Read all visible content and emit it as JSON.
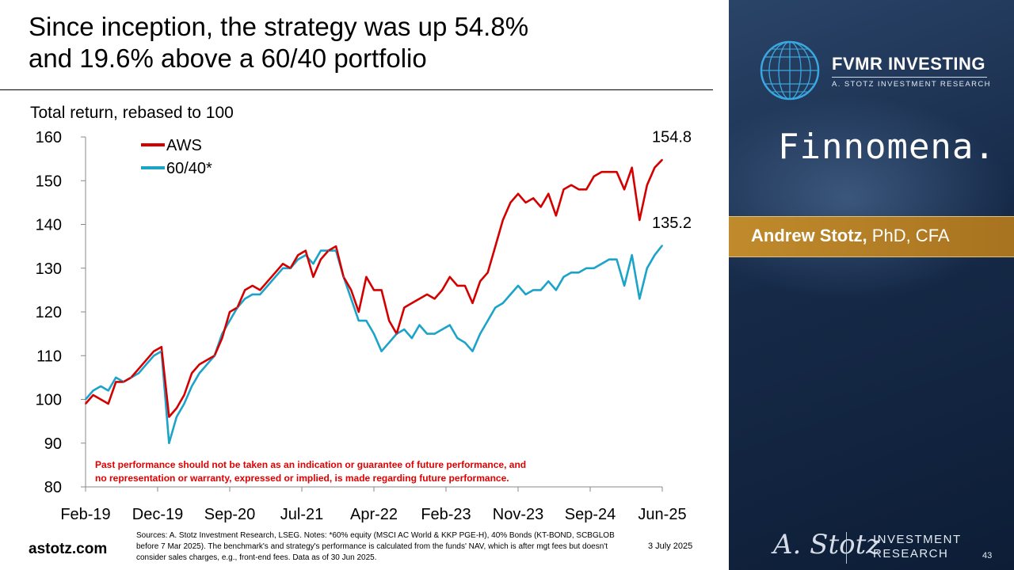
{
  "slide": {
    "title_line1": "Since inception, the strategy was up 54.8%",
    "title_line2": "and 19.6% above a 60/40 portfolio",
    "website": "astotz.com",
    "sources": "Sources: A. Stotz Investment Research, LSEG. Notes: *60% equity (MSCI AC World & KKP PGE-H), 40% Bonds (KT-BOND, SCBGLOB before 7 Mar 2025). The benchmark's and strategy's performance is calculated from the funds' NAV, which is after mgt fees but doesn't consider sales charges, e.g., front-end fees. Data as of 30 Jun 2025.",
    "date": "3 July 2025",
    "page_number": "43"
  },
  "sidebar": {
    "brand": "FVMR INVESTING",
    "brand_sub": "A. STOTZ INVESTMENT RESEARCH",
    "partner": "Finnomena.",
    "author_name": "Andrew Stotz,",
    "author_credentials": " PhD, CFA",
    "signature": "A. Stotz",
    "sig_line1": "INVESTMENT",
    "sig_line2": "RESEARCH",
    "bg_color": "#162a48",
    "accent_color": "#b07a22"
  },
  "chart_data": {
    "type": "line",
    "title": "Total return, rebased to 100",
    "xlabel": "",
    "ylabel": "",
    "ylim": [
      80,
      160
    ],
    "yticks": [
      80,
      90,
      100,
      110,
      120,
      130,
      140,
      150,
      160
    ],
    "x_tick_labels": [
      "Feb-19",
      "Dec-19",
      "Sep-20",
      "Jul-21",
      "Apr-22",
      "Feb-23",
      "Nov-23",
      "Sep-24",
      "Jun-25"
    ],
    "x_range_months": [
      0,
      76
    ],
    "legend_position": "top-left",
    "grid": false,
    "disclaimer_line1": "Past performance should not be taken as an indication or guarantee of future performance, and",
    "disclaimer_line2": "no representation or warranty, expressed or implied, is made regarding future performance.",
    "disclaimer_color": "#e00000",
    "series": [
      {
        "name": "AWS",
        "color": "#d40000",
        "end_label": "154.8",
        "x": [
          0,
          1,
          2,
          3,
          4,
          5,
          6,
          7,
          8,
          9,
          10,
          11,
          12,
          13,
          14,
          15,
          16,
          17,
          18,
          19,
          20,
          21,
          22,
          23,
          24,
          25,
          26,
          27,
          28,
          29,
          30,
          31,
          32,
          33,
          34,
          35,
          36,
          37,
          38,
          39,
          40,
          41,
          42,
          43,
          44,
          45,
          46,
          47,
          48,
          49,
          50,
          51,
          52,
          53,
          54,
          55,
          56,
          57,
          58,
          59,
          60,
          61,
          62,
          63,
          64,
          65,
          66,
          67,
          68,
          69,
          70,
          71,
          72,
          73,
          74,
          75,
          76
        ],
        "values": [
          99,
          101,
          100,
          99,
          104,
          104,
          105,
          107,
          109,
          111,
          112,
          96,
          98,
          101,
          106,
          108,
          109,
          110,
          114,
          120,
          121,
          125,
          126,
          125,
          127,
          129,
          131,
          130,
          133,
          134,
          128,
          132,
          134,
          135,
          128,
          125,
          120,
          128,
          125,
          125,
          118,
          115,
          121,
          122,
          123,
          124,
          123,
          125,
          128,
          126,
          126,
          122,
          127,
          129,
          135,
          141,
          145,
          147,
          145,
          146,
          144,
          147,
          142,
          148,
          149,
          148,
          148,
          151,
          152,
          152,
          152,
          148,
          153,
          141,
          149,
          153,
          154.8
        ]
      },
      {
        "name": "60/40*",
        "color": "#1ba3c9",
        "end_label": "135.2",
        "x": [
          0,
          1,
          2,
          3,
          4,
          5,
          6,
          7,
          8,
          9,
          10,
          11,
          12,
          13,
          14,
          15,
          16,
          17,
          18,
          19,
          20,
          21,
          22,
          23,
          24,
          25,
          26,
          27,
          28,
          29,
          30,
          31,
          32,
          33,
          34,
          35,
          36,
          37,
          38,
          39,
          40,
          41,
          42,
          43,
          44,
          45,
          46,
          47,
          48,
          49,
          50,
          51,
          52,
          53,
          54,
          55,
          56,
          57,
          58,
          59,
          60,
          61,
          62,
          63,
          64,
          65,
          66,
          67,
          68,
          69,
          70,
          71,
          72,
          73,
          74,
          75,
          76
        ],
        "values": [
          100,
          102,
          103,
          102,
          105,
          104,
          105,
          106,
          108,
          110,
          111,
          90,
          96,
          99,
          103,
          106,
          108,
          110,
          115,
          118,
          121,
          123,
          124,
          124,
          126,
          128,
          130,
          130,
          132,
          133,
          131,
          134,
          134,
          134,
          128,
          123,
          118,
          118,
          115,
          111,
          113,
          115,
          116,
          114,
          117,
          115,
          115,
          116,
          117,
          114,
          113,
          111,
          115,
          118,
          121,
          122,
          124,
          126,
          124,
          125,
          125,
          127,
          125,
          128,
          129,
          129,
          130,
          130,
          131,
          132,
          132,
          126,
          133,
          123,
          130,
          133,
          135.2
        ]
      }
    ]
  }
}
